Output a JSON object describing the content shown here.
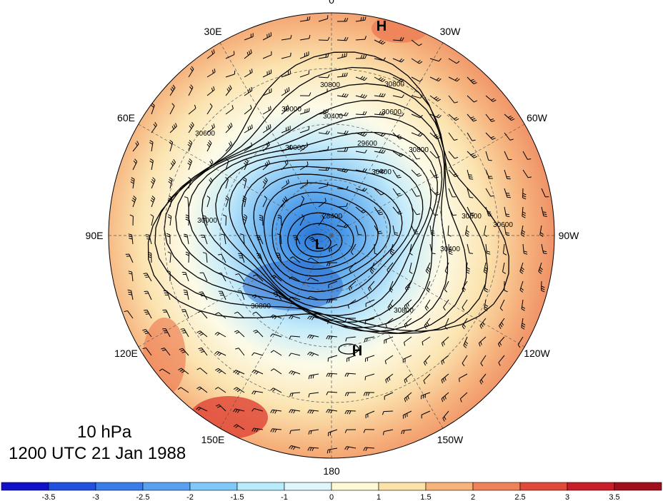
{
  "title": {
    "level": "10 hPa",
    "time": "1200 UTC 21 Jan 1988"
  },
  "longitude_labels": [
    "0",
    "30W",
    "60W",
    "90W",
    "120W",
    "150W",
    "180",
    "150E",
    "120E",
    "90E",
    "60E",
    "30E"
  ],
  "pressure_systems": [
    {
      "label": "H",
      "kind": "high"
    },
    {
      "label": "L",
      "kind": "low"
    },
    {
      "label": "H",
      "kind": "high"
    }
  ],
  "contour_labels": [
    "30800",
    "30800",
    "30600",
    "30400",
    "30000",
    "30000",
    "29600",
    "30400",
    "30800",
    "28400",
    "30600",
    "30000",
    "30400",
    "30800",
    "30600",
    "30800",
    "30600"
  ],
  "colorbar": {
    "levels": [
      "-3.5",
      "-3",
      "-2.5",
      "-2",
      "-1.5",
      "-1",
      "0",
      "1",
      "1.5",
      "2",
      "2.5",
      "3",
      "3.5"
    ],
    "colors": [
      "#1010c8",
      "#2050dc",
      "#3a7ce8",
      "#5aa0f0",
      "#80c8f8",
      "#b8ecfc",
      "#e0f6fc",
      "#fdf8d6",
      "#fbe2a8",
      "#f6b47c",
      "#ee8258",
      "#e04a3a",
      "#c81e2a",
      "#a00f1c"
    ]
  }
}
